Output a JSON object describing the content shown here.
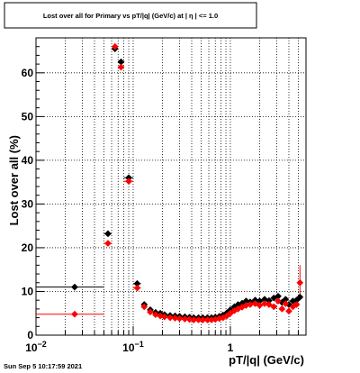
{
  "chart_data": {
    "type": "scatter",
    "title": "Lost over all for Primary vs pT/|q| (GeV/c) at |  η | <= 1.0",
    "xlabel": "pT/|q| (GeV/c)",
    "ylabel": "Lost over all (%)",
    "x_scale": "log",
    "xlim": [
      0.01,
      6.0
    ],
    "ylim": [
      0,
      68
    ],
    "grid": true,
    "x_tick_labels": [
      {
        "value": 0.01,
        "base": "10",
        "exp": "−2"
      },
      {
        "value": 0.1,
        "base": "10",
        "exp": "−1"
      },
      {
        "value": 1,
        "base": "1",
        "exp": ""
      }
    ],
    "y_ticks": [
      0,
      10,
      20,
      30,
      40,
      50,
      60
    ],
    "timestamp": "Sun Sep  5 10:17:59 2021",
    "series": [
      {
        "color": "#000000",
        "marker": "diamond",
        "points": [
          {
            "x": 0.025,
            "y": 11.0,
            "xlo": 0.01,
            "xhi": 0.05
          },
          {
            "x": 0.055,
            "y": 23.2,
            "xlo": 0.05,
            "xhi": 0.06
          },
          {
            "x": 0.065,
            "y": 65.5,
            "xlo": 0.06,
            "xhi": 0.07
          },
          {
            "x": 0.075,
            "y": 62.5,
            "xlo": 0.07,
            "xhi": 0.08
          },
          {
            "x": 0.09,
            "y": 36.0,
            "xlo": 0.08,
            "xhi": 0.1
          },
          {
            "x": 0.11,
            "y": 11.8,
            "xlo": 0.1,
            "xhi": 0.12
          },
          {
            "x": 0.13,
            "y": 7.0
          },
          {
            "x": 0.15,
            "y": 5.8
          },
          {
            "x": 0.17,
            "y": 5.2
          },
          {
            "x": 0.19,
            "y": 5.0
          },
          {
            "x": 0.21,
            "y": 4.7
          },
          {
            "x": 0.24,
            "y": 4.5
          },
          {
            "x": 0.27,
            "y": 4.4
          },
          {
            "x": 0.3,
            "y": 4.3
          },
          {
            "x": 0.34,
            "y": 4.2
          },
          {
            "x": 0.38,
            "y": 4.1
          },
          {
            "x": 0.42,
            "y": 4.0
          },
          {
            "x": 0.47,
            "y": 4.0
          },
          {
            "x": 0.52,
            "y": 4.0
          },
          {
            "x": 0.58,
            "y": 4.0
          },
          {
            "x": 0.64,
            "y": 4.0
          },
          {
            "x": 0.7,
            "y": 4.1
          },
          {
            "x": 0.77,
            "y": 4.3
          },
          {
            "x": 0.84,
            "y": 4.6
          },
          {
            "x": 0.92,
            "y": 5.1
          },
          {
            "x": 1.0,
            "y": 5.8
          },
          {
            "x": 1.1,
            "y": 6.5
          },
          {
            "x": 1.2,
            "y": 7.0
          },
          {
            "x": 1.32,
            "y": 7.3
          },
          {
            "x": 1.45,
            "y": 7.8
          },
          {
            "x": 1.6,
            "y": 7.6
          },
          {
            "x": 1.8,
            "y": 8.0
          },
          {
            "x": 2.0,
            "y": 7.8
          },
          {
            "x": 2.25,
            "y": 8.2
          },
          {
            "x": 2.5,
            "y": 7.9
          },
          {
            "x": 2.8,
            "y": 8.5
          },
          {
            "x": 3.1,
            "y": 8.9
          },
          {
            "x": 3.4,
            "y": 7.5
          },
          {
            "x": 3.7,
            "y": 8.2
          },
          {
            "x": 4.0,
            "y": 7.0
          },
          {
            "x": 4.4,
            "y": 7.8
          },
          {
            "x": 4.8,
            "y": 8.0
          },
          {
            "x": 5.2,
            "y": 8.7
          }
        ]
      },
      {
        "color": "#ff0000",
        "marker": "diamond",
        "points": [
          {
            "x": 0.025,
            "y": 4.8,
            "xlo": 0.01,
            "xhi": 0.05
          },
          {
            "x": 0.055,
            "y": 21.0,
            "xlo": 0.05,
            "xhi": 0.06
          },
          {
            "x": 0.065,
            "y": 66.0,
            "xlo": 0.06,
            "xhi": 0.07
          },
          {
            "x": 0.075,
            "y": 61.3,
            "xlo": 0.07,
            "xhi": 0.08
          },
          {
            "x": 0.09,
            "y": 35.2,
            "xlo": 0.08,
            "xhi": 0.1
          },
          {
            "x": 0.11,
            "y": 10.8,
            "xlo": 0.1,
            "xhi": 0.12
          },
          {
            "x": 0.13,
            "y": 6.5
          },
          {
            "x": 0.15,
            "y": 5.3
          },
          {
            "x": 0.17,
            "y": 4.7
          },
          {
            "x": 0.19,
            "y": 4.4
          },
          {
            "x": 0.21,
            "y": 4.2
          },
          {
            "x": 0.24,
            "y": 4.0
          },
          {
            "x": 0.27,
            "y": 3.9
          },
          {
            "x": 0.3,
            "y": 3.8
          },
          {
            "x": 0.34,
            "y": 3.7
          },
          {
            "x": 0.38,
            "y": 3.6
          },
          {
            "x": 0.42,
            "y": 3.5
          },
          {
            "x": 0.47,
            "y": 3.5
          },
          {
            "x": 0.52,
            "y": 3.5
          },
          {
            "x": 0.58,
            "y": 3.5
          },
          {
            "x": 0.64,
            "y": 3.5
          },
          {
            "x": 0.7,
            "y": 3.6
          },
          {
            "x": 0.77,
            "y": 3.8
          },
          {
            "x": 0.84,
            "y": 4.0
          },
          {
            "x": 0.92,
            "y": 4.4
          },
          {
            "x": 1.0,
            "y": 5.0
          },
          {
            "x": 1.1,
            "y": 5.6
          },
          {
            "x": 1.2,
            "y": 6.0
          },
          {
            "x": 1.32,
            "y": 6.4
          },
          {
            "x": 1.45,
            "y": 6.8
          },
          {
            "x": 1.6,
            "y": 7.0
          },
          {
            "x": 1.8,
            "y": 7.2
          },
          {
            "x": 2.0,
            "y": 6.8
          },
          {
            "x": 2.25,
            "y": 7.2
          },
          {
            "x": 2.5,
            "y": 7.0
          },
          {
            "x": 2.8,
            "y": 6.5
          },
          {
            "x": 3.1,
            "y": 7.8
          },
          {
            "x": 3.4,
            "y": 6.0
          },
          {
            "x": 3.7,
            "y": 7.2
          },
          {
            "x": 4.0,
            "y": 5.5
          },
          {
            "x": 4.4,
            "y": 6.5
          },
          {
            "x": 4.8,
            "y": 7.0
          },
          {
            "x": 5.2,
            "y": 12.0,
            "yerr": 4.0
          }
        ]
      }
    ]
  }
}
